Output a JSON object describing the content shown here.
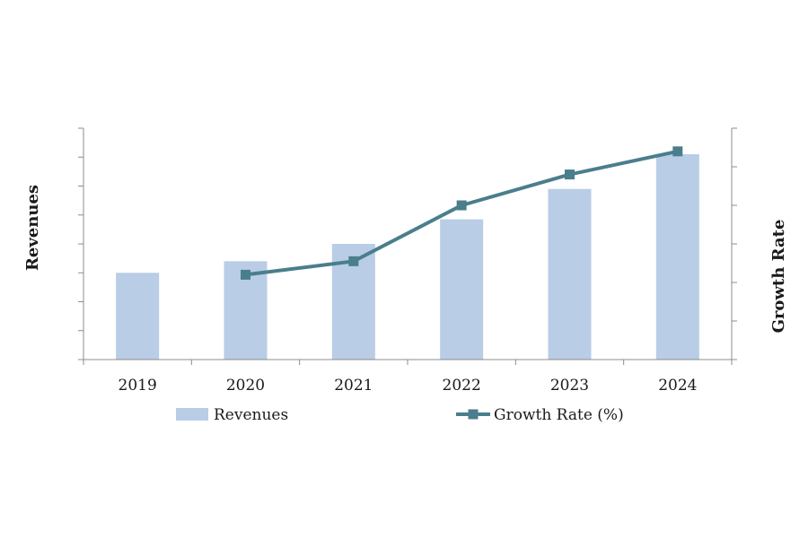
{
  "chart_data": {
    "type": "bar",
    "categories": [
      "2019",
      "2020",
      "2021",
      "2022",
      "2023",
      "2024"
    ],
    "series": [
      {
        "name": "Revenues",
        "type": "bar",
        "axis": "left",
        "values": [
          3.0,
          3.4,
          4.0,
          4.85,
          5.9,
          7.1
        ],
        "color": "#b9cde6"
      },
      {
        "name": "Growth Rate (%)",
        "type": "line",
        "axis": "right",
        "values": [
          null,
          2.2,
          2.55,
          4.0,
          4.8,
          5.4
        ],
        "color": "#4a7e8c",
        "marker": "square"
      }
    ],
    "ylabel": "Revenues",
    "y2label": "Growth Rate",
    "ylim": [
      0,
      8
    ],
    "y2lim": [
      0,
      6
    ],
    "y_tick_labels_shown": false,
    "y2_tick_labels_shown": false,
    "grid": false,
    "legend": {
      "position": "bottom",
      "items": [
        "Revenues",
        "Growth Rate (%)"
      ]
    }
  }
}
